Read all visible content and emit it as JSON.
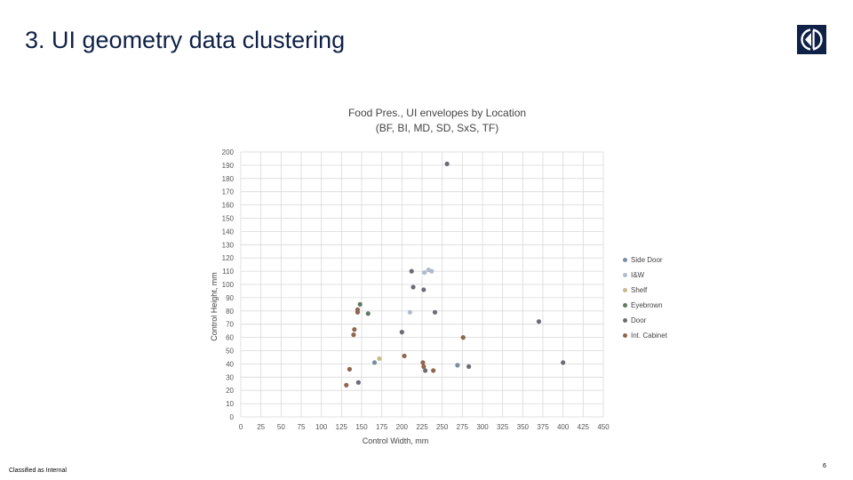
{
  "slide": {
    "title": "3. UI geometry data clustering",
    "footer": "Classified as Internal",
    "page_number": "6"
  },
  "chart_data": {
    "type": "scatter",
    "title": "Food Pres., UI envelopes by Location",
    "subtitle": "(BF, BI, MD, SD, SxS, TF)",
    "xlabel": "Control Width, mm",
    "ylabel": "Control Height, mm",
    "xlim": [
      0,
      450
    ],
    "ylim": [
      0,
      200
    ],
    "xticks": [
      0,
      25,
      50,
      75,
      100,
      125,
      150,
      175,
      200,
      225,
      250,
      275,
      300,
      325,
      350,
      375,
      400,
      425,
      450
    ],
    "yticks": [
      0,
      10,
      20,
      30,
      40,
      50,
      60,
      70,
      80,
      90,
      100,
      110,
      120,
      130,
      140,
      150,
      160,
      170,
      180,
      190,
      200
    ],
    "grid": true,
    "legend_position": "right",
    "series": [
      {
        "name": "Side Door",
        "color": "#7a8ea0",
        "points": [
          [
            166,
            41
          ],
          [
            269,
            39
          ]
        ]
      },
      {
        "name": "I&W",
        "color": "#aebccc",
        "points": [
          [
            210,
            79
          ],
          [
            228,
            109
          ],
          [
            233,
            111
          ],
          [
            237,
            110
          ]
        ]
      },
      {
        "name": "Shelf",
        "color": "#ccb98a",
        "points": [
          [
            172,
            44
          ],
          [
            276,
            60
          ]
        ]
      },
      {
        "name": "Eyebrown",
        "color": "#5e7a60",
        "points": [
          [
            148,
            85
          ],
          [
            158,
            78
          ]
        ]
      },
      {
        "name": "Door",
        "color": "#6c6c76",
        "points": [
          [
            146,
            26
          ],
          [
            200,
            64
          ],
          [
            212,
            110
          ],
          [
            214,
            98
          ],
          [
            227,
            96
          ],
          [
            229,
            35
          ],
          [
            241,
            79
          ],
          [
            256,
            191
          ],
          [
            283,
            38
          ],
          [
            370,
            72
          ],
          [
            400,
            41
          ]
        ]
      },
      {
        "name": "Int. Cabinet",
        "color": "#8f6650",
        "points": [
          [
            131,
            24
          ],
          [
            135,
            36
          ],
          [
            140,
            62
          ],
          [
            141,
            66
          ],
          [
            145,
            79
          ],
          [
            145,
            81
          ],
          [
            203,
            46
          ],
          [
            226,
            41
          ],
          [
            227,
            38
          ],
          [
            239,
            35
          ],
          [
            276,
            60
          ]
        ]
      }
    ]
  }
}
